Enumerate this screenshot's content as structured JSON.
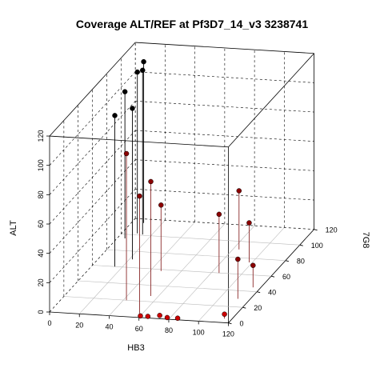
{
  "chart_data": {
    "type": "scatter",
    "title": "Coverage ALT/REF at Pf3D7_14_v3 3238741",
    "xlabel": "HB3",
    "ylabel": "7G8",
    "zlabel": "ALT",
    "xlim": [
      0,
      120
    ],
    "ylim": [
      0,
      120
    ],
    "zlim": [
      0,
      120
    ],
    "x_ticks": [
      "0",
      "20",
      "40",
      "60",
      "80",
      "100",
      "120"
    ],
    "y_ticks": [
      "0",
      "20",
      "40",
      "60",
      "80",
      "100",
      "120"
    ],
    "z_ticks": [
      "0",
      "20",
      "40",
      "60",
      "80",
      "100",
      "120"
    ],
    "colors": {
      "high_alt": "#000000",
      "mixed": "#8b0000",
      "low_alt": "#cc0000"
    },
    "points": [
      {
        "x": 5,
        "y": 95,
        "z": 100,
        "color": "high_alt"
      },
      {
        "x": 10,
        "y": 102,
        "z": 110,
        "color": "high_alt"
      },
      {
        "x": 14,
        "y": 101,
        "z": 112,
        "color": "high_alt"
      },
      {
        "x": 8,
        "y": 115,
        "z": 110,
        "color": "high_alt"
      },
      {
        "x": 22,
        "y": 70,
        "z": 103,
        "color": "high_alt"
      },
      {
        "x": 15,
        "y": 60,
        "z": 103,
        "color": "high_alt"
      },
      {
        "x": 42,
        "y": 20,
        "z": 100,
        "color": "mixed"
      },
      {
        "x": 58,
        "y": 5,
        "z": 80,
        "color": "mixed"
      },
      {
        "x": 55,
        "y": 27,
        "z": 78,
        "color": "mixed"
      },
      {
        "x": 47,
        "y": 58,
        "z": 45,
        "color": "mixed"
      },
      {
        "x": 85,
        "y": 60,
        "z": 40,
        "color": "mixed"
      },
      {
        "x": 84,
        "y": 90,
        "z": 40,
        "color": "mixed"
      },
      {
        "x": 98,
        "y": 75,
        "z": 27,
        "color": "mixed"
      },
      {
        "x": 112,
        "y": 30,
        "z": 27,
        "color": "mixed"
      },
      {
        "x": 115,
        "y": 45,
        "z": 15,
        "color": "mixed"
      },
      {
        "x": 115,
        "y": 5,
        "z": 3,
        "color": "low_alt"
      },
      {
        "x": 60,
        "y": 2,
        "z": 0,
        "color": "low_alt"
      },
      {
        "x": 65,
        "y": 2,
        "z": 0,
        "color": "low_alt"
      },
      {
        "x": 72,
        "y": 4,
        "z": 0,
        "color": "low_alt"
      },
      {
        "x": 78,
        "y": 2,
        "z": 0,
        "color": "low_alt"
      },
      {
        "x": 85,
        "y": 2,
        "z": 0,
        "color": "low_alt"
      }
    ]
  }
}
